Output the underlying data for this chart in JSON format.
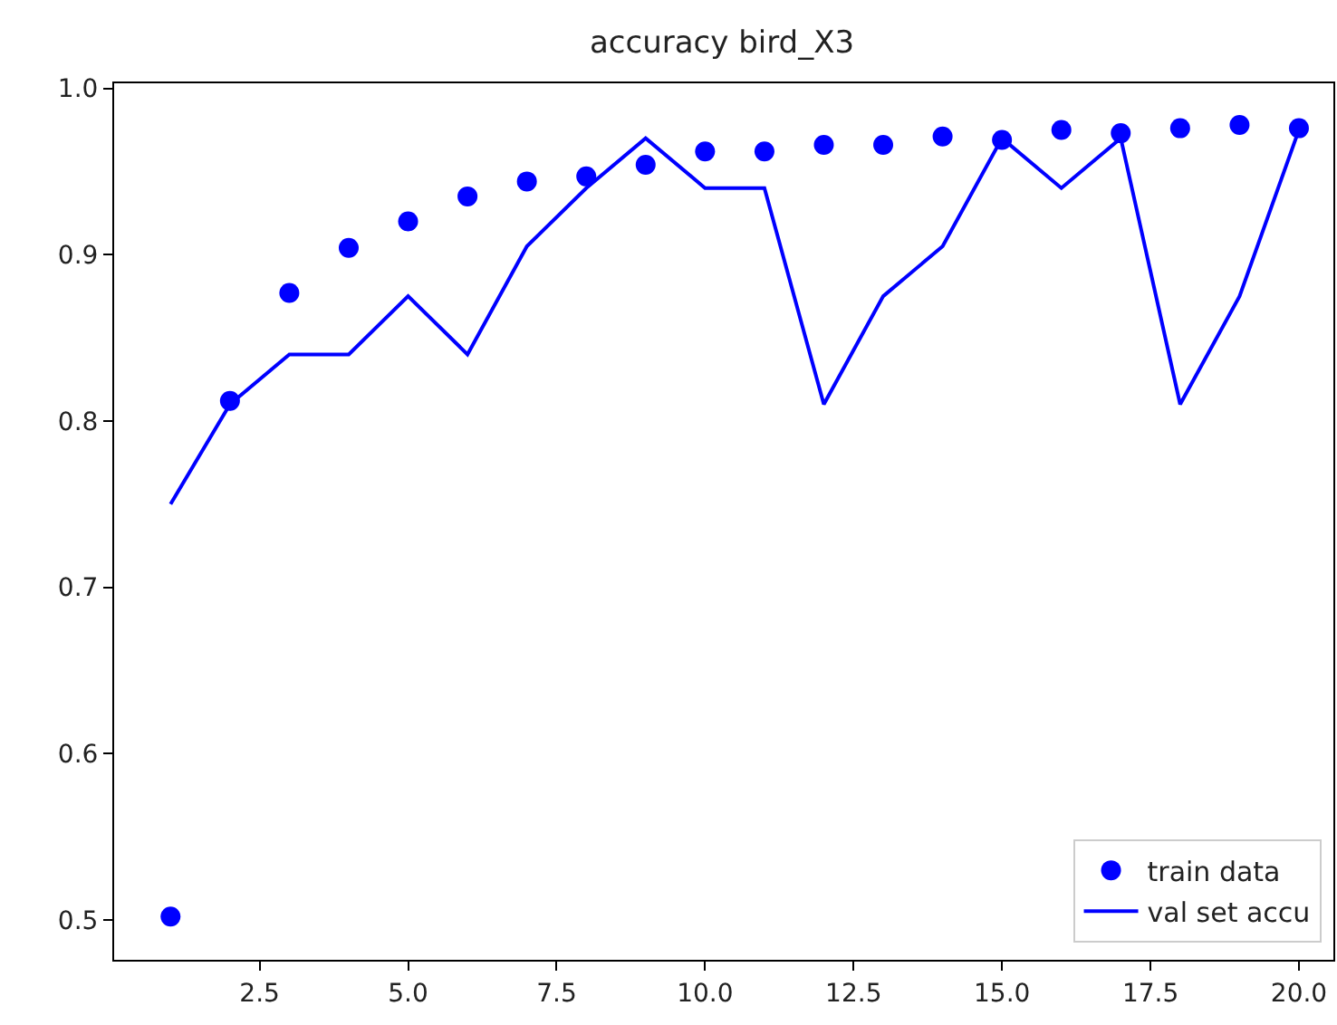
{
  "chart_data": {
    "type": "scatter",
    "title": "accuracy bird_X3",
    "x": [
      1,
      2,
      3,
      4,
      5,
      6,
      7,
      8,
      9,
      10,
      11,
      12,
      13,
      14,
      15,
      16,
      17,
      18,
      19,
      20
    ],
    "series": [
      {
        "name": "train data",
        "color": "#0000ff",
        "marker": "circle",
        "values": [
          0.502,
          0.812,
          0.877,
          0.904,
          0.92,
          0.935,
          0.944,
          0.947,
          0.954,
          0.962,
          0.962,
          0.966,
          0.966,
          0.971,
          0.969,
          0.975,
          0.973,
          0.976,
          0.978,
          0.976
        ]
      },
      {
        "name": "val set accu",
        "type": "line",
        "color": "#0000ff",
        "marker": "none",
        "line_style": "solid",
        "values": [
          0.75,
          0.81,
          0.84,
          0.84,
          0.875,
          0.84,
          0.905,
          0.94,
          0.97,
          0.94,
          0.94,
          0.81,
          0.875,
          0.905,
          0.97,
          0.94,
          0.97,
          0.81,
          0.875,
          0.975
        ]
      }
    ],
    "xlim": [
      0.05,
      20.58
    ],
    "ylim": [
      0.476,
      1.003
    ],
    "xticks": [
      2.5,
      {
        "value": 5,
        "label": "5.0"
      },
      7.5,
      {
        "value": 10,
        "label": "10.0"
      },
      12.5,
      {
        "value": 15,
        "label": "15.0"
      },
      17.5,
      {
        "value": 20,
        "label": "20.0"
      }
    ],
    "yticks": [
      0.5,
      0.6,
      0.7,
      0.8,
      0.9,
      {
        "value": 1,
        "label": "1.0"
      }
    ],
    "grid": false,
    "legend": "bottom right"
  }
}
